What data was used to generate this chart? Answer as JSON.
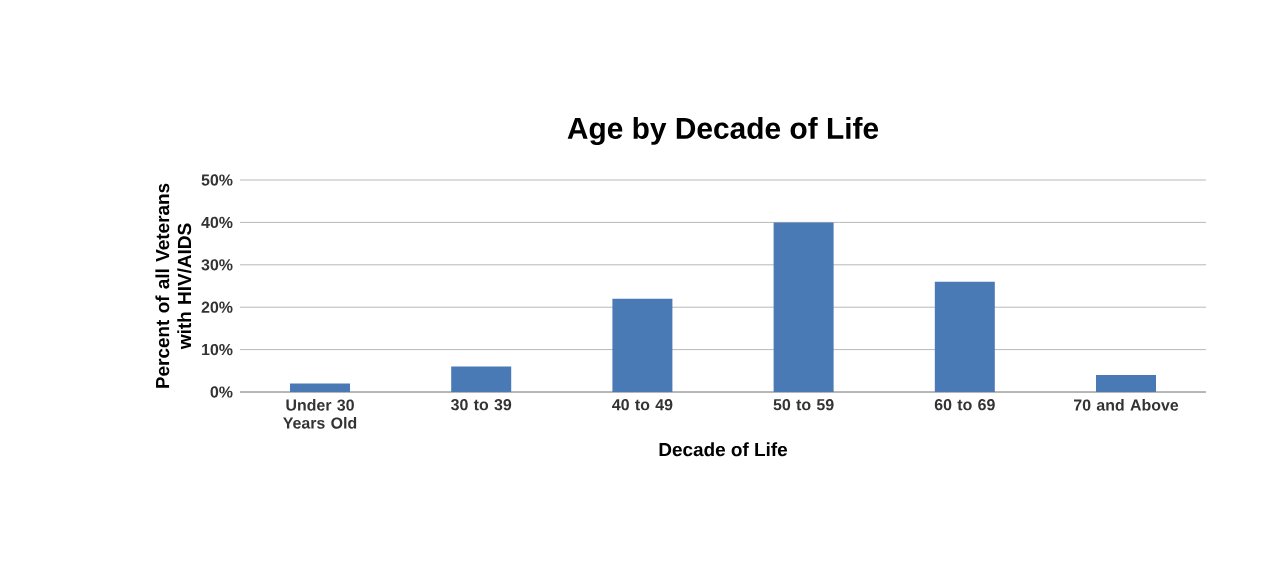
{
  "chart_data": {
    "type": "bar",
    "title": "Age by Decade of Life",
    "xlabel": "Decade of Life",
    "ylabel": "Percent of all Veterans with HIV/AIDS",
    "categories": [
      "Under 30 Years Old",
      "30 to 39",
      "40 to 49",
      "50 to 59",
      "60 to 69",
      "70 and Above"
    ],
    "values": [
      2,
      6,
      22,
      40,
      26,
      4
    ],
    "color": "#4a7ab5",
    "ylim": [
      0,
      50
    ],
    "yticks": [
      {
        "value": 0,
        "label": "0%"
      },
      {
        "value": 10,
        "label": "10%"
      },
      {
        "value": 20,
        "label": "20%"
      },
      {
        "value": 30,
        "label": "30%"
      },
      {
        "value": 40,
        "label": "40%"
      },
      {
        "value": 50,
        "label": "50%"
      }
    ],
    "grid": "y"
  }
}
